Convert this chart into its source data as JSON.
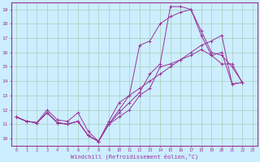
{
  "xlabel": "Windchill (Refroidissement éolien,°C)",
  "bg_color": "#cceeff",
  "line_color": "#993399",
  "grid_color": "#aaccbb",
  "xlim": [
    -0.5,
    23.5
  ],
  "ylim": [
    9.5,
    19.5
  ],
  "xticks": [
    0,
    1,
    2,
    3,
    4,
    5,
    6,
    7,
    8,
    9,
    10,
    11,
    12,
    13,
    14,
    15,
    16,
    17,
    18,
    19,
    20,
    21,
    22,
    23
  ],
  "yticks": [
    10,
    11,
    12,
    13,
    14,
    15,
    16,
    17,
    18,
    19
  ],
  "series": [
    [
      11.5,
      11.2,
      11.1,
      11.8,
      11.1,
      11.0,
      11.2,
      10.2,
      9.8,
      11.0,
      11.5,
      12.0,
      13.0,
      13.5,
      15.0,
      15.2,
      15.5,
      15.8,
      16.2,
      15.8,
      16.0,
      13.8,
      13.9
    ],
    [
      11.5,
      11.2,
      11.1,
      11.8,
      11.1,
      11.0,
      11.2,
      10.2,
      9.8,
      11.0,
      11.8,
      12.5,
      13.2,
      14.5,
      15.2,
      19.2,
      19.2,
      19.0,
      17.2,
      15.8,
      15.2,
      15.2,
      13.9
    ],
    [
      11.5,
      11.2,
      11.1,
      12.0,
      11.3,
      11.2,
      11.8,
      10.5,
      9.8,
      11.2,
      12.5,
      13.0,
      13.5,
      14.0,
      14.5,
      15.0,
      15.5,
      16.0,
      16.5,
      16.8,
      17.2,
      13.8,
      13.9
    ],
    [
      11.5,
      11.2,
      11.1,
      11.8,
      11.1,
      11.0,
      11.2,
      10.2,
      9.8,
      11.0,
      12.0,
      13.0,
      16.5,
      16.8,
      18.0,
      18.5,
      18.8,
      19.0,
      17.5,
      16.0,
      15.8,
      15.0,
      13.9
    ]
  ]
}
